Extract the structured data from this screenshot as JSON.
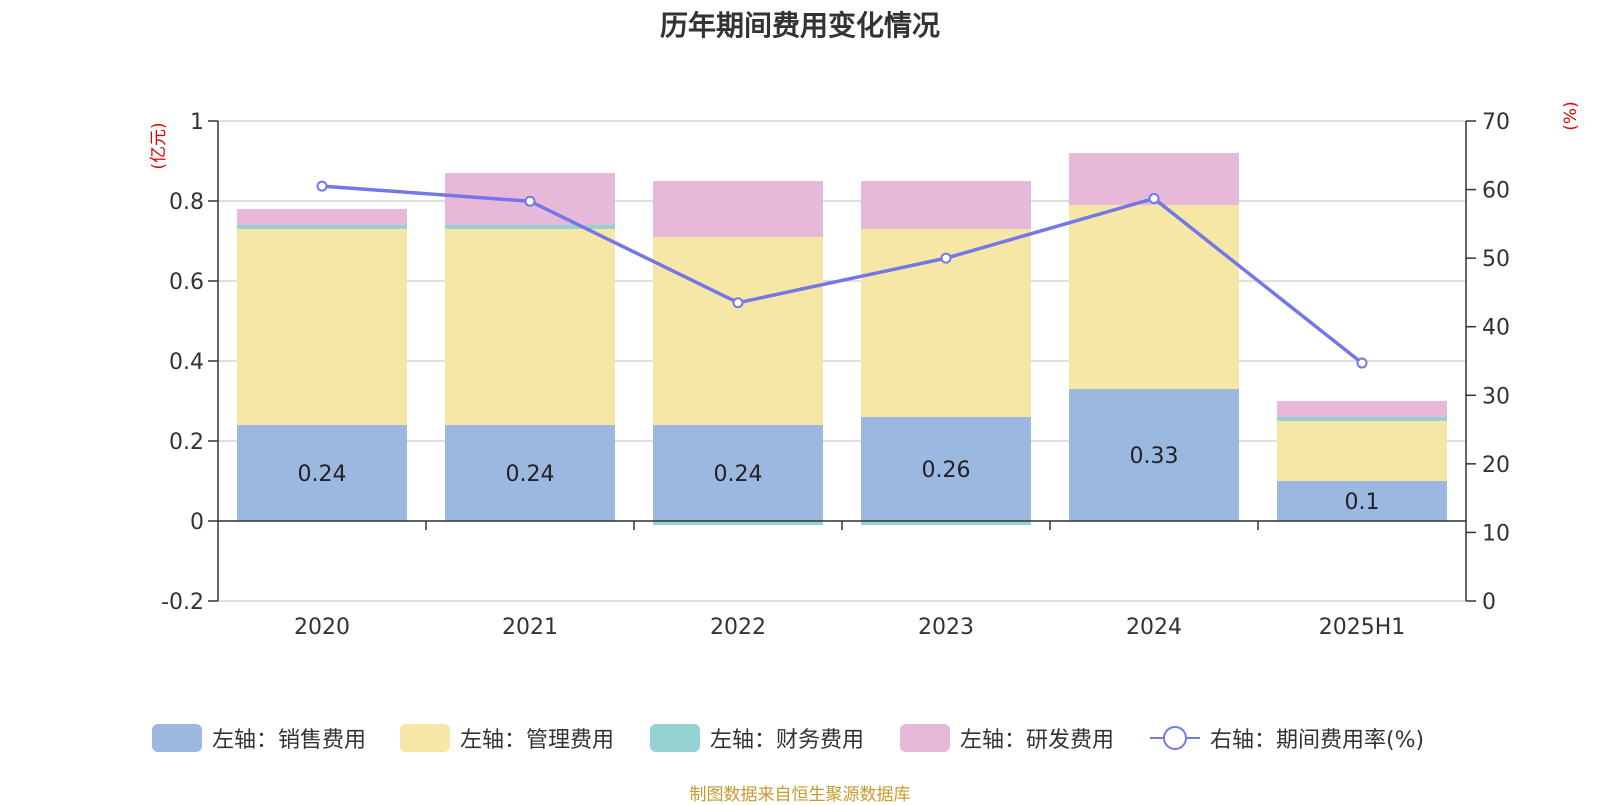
{
  "chart_data": {
    "type": "bar",
    "title": "历年期间费用变化情况",
    "categories": [
      "2020",
      "2021",
      "2022",
      "2023",
      "2024",
      "2025H1"
    ],
    "left_axis": {
      "unit_label": "(亿元)",
      "ylim": [
        -0.2,
        1.0
      ],
      "ticks": [
        -0.2,
        0,
        0.2,
        0.4,
        0.6,
        0.8,
        1
      ],
      "tick_labels": [
        "-0.2",
        "0",
        "0.2",
        "0.4",
        "0.6",
        "0.8",
        "1"
      ]
    },
    "right_axis": {
      "unit_label": "(%)",
      "ylim": [
        0,
        70
      ],
      "ticks": [
        0,
        10,
        20,
        30,
        40,
        50,
        60,
        70
      ],
      "tick_labels": [
        "0",
        "10",
        "20",
        "30",
        "40",
        "50",
        "60",
        "70"
      ]
    },
    "stacked": true,
    "series": [
      {
        "name": "左轴：销售费用",
        "axis": "left",
        "type": "bar",
        "color": "#9bb8e1",
        "values": [
          0.24,
          0.24,
          0.24,
          0.26,
          0.33,
          0.1
        ],
        "data_labels": [
          "0.24",
          "0.24",
          "0.24",
          "0.26",
          "0.33",
          "0.1"
        ]
      },
      {
        "name": "左轴：管理费用",
        "axis": "left",
        "type": "bar",
        "color": "#f7e7a6",
        "values": [
          0.49,
          0.49,
          0.47,
          0.47,
          0.46,
          0.15
        ]
      },
      {
        "name": "左轴：财务费用",
        "axis": "left",
        "type": "bar",
        "color": "#94d2d4",
        "values": [
          0.01,
          0.01,
          -0.01,
          -0.01,
          0.0,
          0.01
        ]
      },
      {
        "name": "左轴：研发费用",
        "axis": "left",
        "type": "bar",
        "color": "#e8b8d8",
        "values": [
          0.04,
          0.13,
          0.14,
          0.12,
          0.13,
          0.04
        ]
      },
      {
        "name": "右轴：期间费用率(%)",
        "axis": "right",
        "type": "line",
        "color": "#7377e8",
        "values": [
          60.5,
          58.3,
          43.5,
          50.0,
          58.7,
          34.7
        ]
      }
    ],
    "grid": true,
    "legend_position": "bottom"
  },
  "source_note": "制图数据来自恒生聚源数据库"
}
